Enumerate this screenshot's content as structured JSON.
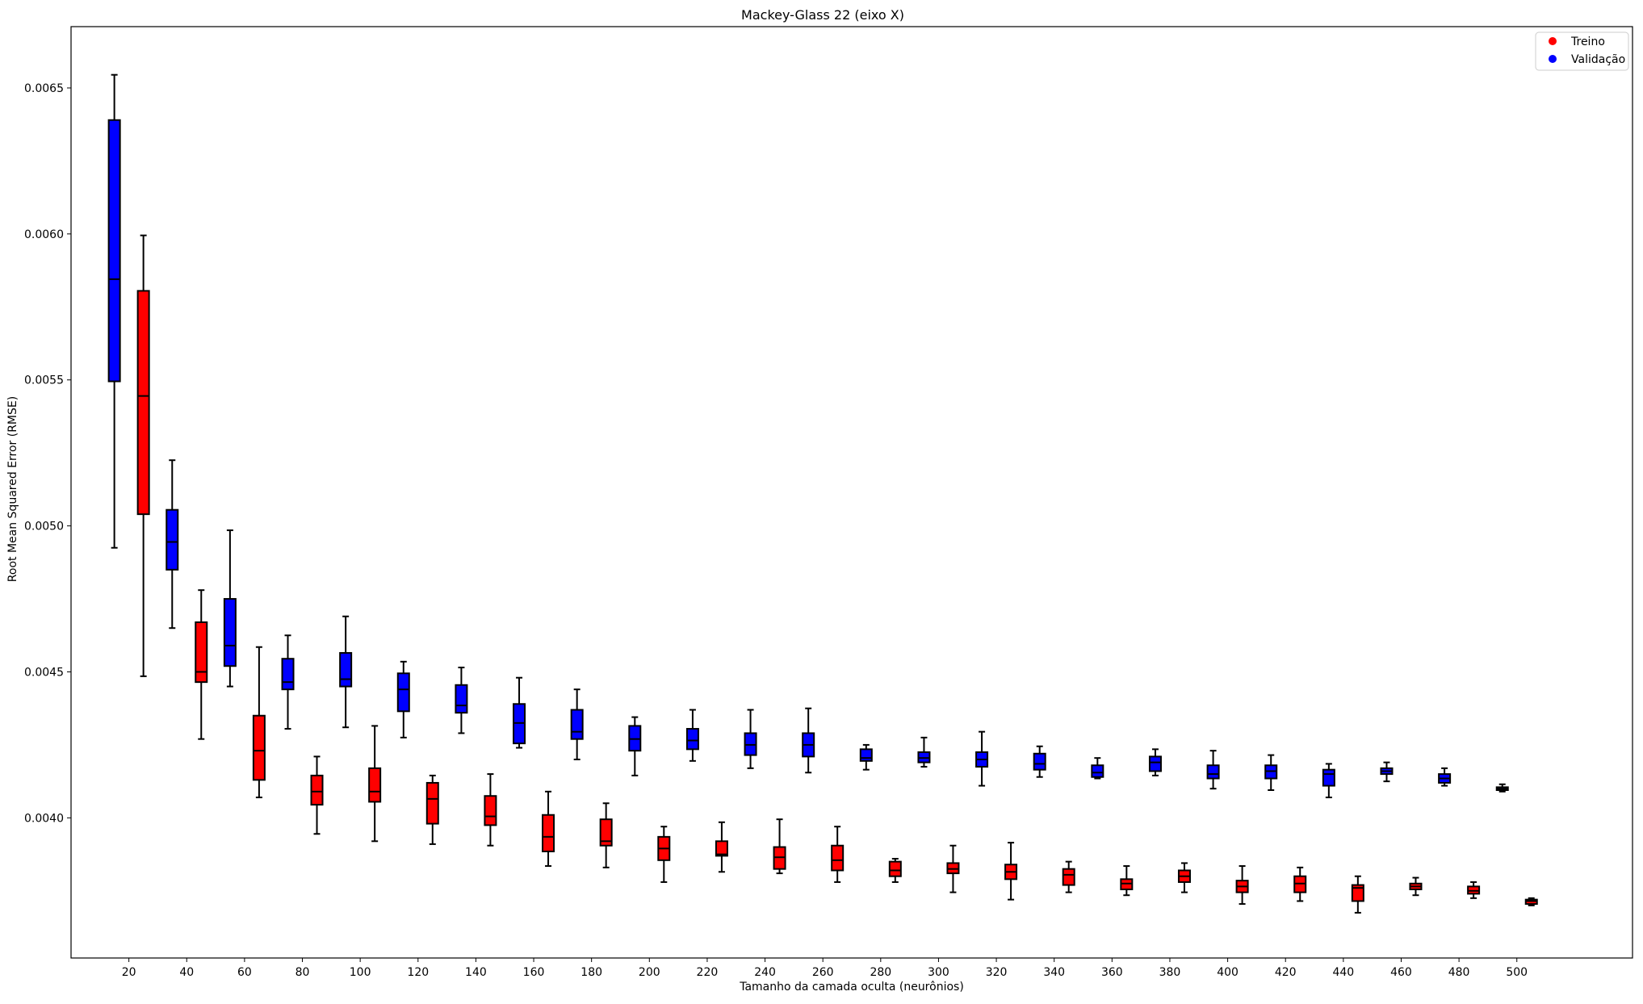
{
  "chart_data": {
    "type": "boxplot",
    "title": "Mackey-Glass 22 (eixo X)",
    "xlabel": "Tamanho da camada oculta (neurônios)",
    "ylabel": "Root Mean Squared Error (RMSE)",
    "categories": [
      20,
      40,
      60,
      80,
      100,
      120,
      140,
      160,
      180,
      200,
      220,
      240,
      260,
      280,
      300,
      320,
      340,
      360,
      380,
      400,
      420,
      440,
      460,
      480,
      500
    ],
    "xlim": [
      0,
      540
    ],
    "ylim": [
      0.00352,
      0.00671
    ],
    "yticks": [
      "0.0040",
      "0.0045",
      "0.0050",
      "0.0055",
      "0.0060",
      "0.0065"
    ],
    "legend": {
      "position": "top-right"
    },
    "series": [
      {
        "name": "Treino",
        "color": "#ff0000",
        "boxes": [
          {
            "whislo": 0.004485,
            "q1": 0.00504,
            "med": 0.005445,
            "q3": 0.005805,
            "whishi": 0.005995
          },
          {
            "whislo": 0.00427,
            "q1": 0.004465,
            "med": 0.0045,
            "q3": 0.00467,
            "whishi": 0.00478
          },
          {
            "whislo": 0.00407,
            "q1": 0.00413,
            "med": 0.00423,
            "q3": 0.00435,
            "whishi": 0.004585
          },
          {
            "whislo": 0.003945,
            "q1": 0.004045,
            "med": 0.00409,
            "q3": 0.004145,
            "whishi": 0.00421
          },
          {
            "whislo": 0.00392,
            "q1": 0.004055,
            "med": 0.00409,
            "q3": 0.00417,
            "whishi": 0.004315
          },
          {
            "whislo": 0.00391,
            "q1": 0.00398,
            "med": 0.004065,
            "q3": 0.00412,
            "whishi": 0.004145
          },
          {
            "whislo": 0.003905,
            "q1": 0.003975,
            "med": 0.004005,
            "q3": 0.004075,
            "whishi": 0.00415
          },
          {
            "whislo": 0.003835,
            "q1": 0.003885,
            "med": 0.003935,
            "q3": 0.00401,
            "whishi": 0.00409
          },
          {
            "whislo": 0.00383,
            "q1": 0.003905,
            "med": 0.00392,
            "q3": 0.003995,
            "whishi": 0.00405
          },
          {
            "whislo": 0.00378,
            "q1": 0.003855,
            "med": 0.003895,
            "q3": 0.003935,
            "whishi": 0.00397
          },
          {
            "whislo": 0.003815,
            "q1": 0.00387,
            "med": 0.003875,
            "q3": 0.00392,
            "whishi": 0.003985
          },
          {
            "whislo": 0.00381,
            "q1": 0.003825,
            "med": 0.003865,
            "q3": 0.0039,
            "whishi": 0.003995
          },
          {
            "whislo": 0.00378,
            "q1": 0.00382,
            "med": 0.003855,
            "q3": 0.003905,
            "whishi": 0.00397
          },
          {
            "whislo": 0.00378,
            "q1": 0.0038,
            "med": 0.00382,
            "q3": 0.00385,
            "whishi": 0.00386
          },
          {
            "whislo": 0.003745,
            "q1": 0.00381,
            "med": 0.003825,
            "q3": 0.003845,
            "whishi": 0.003905
          },
          {
            "whislo": 0.00372,
            "q1": 0.00379,
            "med": 0.003815,
            "q3": 0.00384,
            "whishi": 0.003915
          },
          {
            "whislo": 0.003745,
            "q1": 0.00377,
            "med": 0.003805,
            "q3": 0.003825,
            "whishi": 0.00385
          },
          {
            "whislo": 0.003735,
            "q1": 0.003755,
            "med": 0.003775,
            "q3": 0.00379,
            "whishi": 0.003835
          },
          {
            "whislo": 0.003745,
            "q1": 0.00378,
            "med": 0.0038,
            "q3": 0.00382,
            "whishi": 0.003845
          },
          {
            "whislo": 0.003705,
            "q1": 0.003745,
            "med": 0.003765,
            "q3": 0.003785,
            "whishi": 0.003835
          },
          {
            "whislo": 0.003715,
            "q1": 0.003745,
            "med": 0.003775,
            "q3": 0.0038,
            "whishi": 0.00383
          },
          {
            "whislo": 0.003675,
            "q1": 0.003715,
            "med": 0.00376,
            "q3": 0.00377,
            "whishi": 0.0038
          },
          {
            "whislo": 0.003735,
            "q1": 0.003755,
            "med": 0.003765,
            "q3": 0.003775,
            "whishi": 0.003795
          },
          {
            "whislo": 0.003725,
            "q1": 0.00374,
            "med": 0.00375,
            "q3": 0.003765,
            "whishi": 0.00378
          },
          {
            "whislo": 0.0037,
            "q1": 0.003705,
            "med": 0.003715,
            "q3": 0.00372,
            "whishi": 0.003725
          }
        ]
      },
      {
        "name": "Validação",
        "color": "#0000ff",
        "boxes": [
          {
            "whislo": 0.004925,
            "q1": 0.005495,
            "med": 0.005845,
            "q3": 0.00639,
            "whishi": 0.006545
          },
          {
            "whislo": 0.00465,
            "q1": 0.00485,
            "med": 0.004945,
            "q3": 0.005055,
            "whishi": 0.005225
          },
          {
            "whislo": 0.00445,
            "q1": 0.00452,
            "med": 0.00459,
            "q3": 0.00475,
            "whishi": 0.004985
          },
          {
            "whislo": 0.004305,
            "q1": 0.00444,
            "med": 0.004465,
            "q3": 0.004545,
            "whishi": 0.004625
          },
          {
            "whislo": 0.00431,
            "q1": 0.00445,
            "med": 0.004475,
            "q3": 0.004565,
            "whishi": 0.00469
          },
          {
            "whislo": 0.004275,
            "q1": 0.004365,
            "med": 0.00444,
            "q3": 0.004495,
            "whishi": 0.004535
          },
          {
            "whislo": 0.00429,
            "q1": 0.00436,
            "med": 0.004385,
            "q3": 0.004455,
            "whishi": 0.004515
          },
          {
            "whislo": 0.00424,
            "q1": 0.004255,
            "med": 0.004325,
            "q3": 0.00439,
            "whishi": 0.00448
          },
          {
            "whislo": 0.0042,
            "q1": 0.00427,
            "med": 0.004295,
            "q3": 0.00437,
            "whishi": 0.00444
          },
          {
            "whislo": 0.004145,
            "q1": 0.00423,
            "med": 0.00427,
            "q3": 0.004315,
            "whishi": 0.004345
          },
          {
            "whislo": 0.004195,
            "q1": 0.004235,
            "med": 0.004265,
            "q3": 0.004305,
            "whishi": 0.00437
          },
          {
            "whislo": 0.00417,
            "q1": 0.004215,
            "med": 0.00425,
            "q3": 0.00429,
            "whishi": 0.00437
          },
          {
            "whislo": 0.004155,
            "q1": 0.00421,
            "med": 0.00425,
            "q3": 0.00429,
            "whishi": 0.004375
          },
          {
            "whislo": 0.004165,
            "q1": 0.004195,
            "med": 0.004205,
            "q3": 0.004235,
            "whishi": 0.00425
          },
          {
            "whislo": 0.004175,
            "q1": 0.00419,
            "med": 0.004205,
            "q3": 0.004225,
            "whishi": 0.004275
          },
          {
            "whislo": 0.00411,
            "q1": 0.004175,
            "med": 0.0042,
            "q3": 0.004225,
            "whishi": 0.004295
          },
          {
            "whislo": 0.00414,
            "q1": 0.004165,
            "med": 0.004185,
            "q3": 0.00422,
            "whishi": 0.004245
          },
          {
            "whislo": 0.004135,
            "q1": 0.00414,
            "med": 0.004155,
            "q3": 0.00418,
            "whishi": 0.004205
          },
          {
            "whislo": 0.004145,
            "q1": 0.00416,
            "med": 0.00419,
            "q3": 0.00421,
            "whishi": 0.004235
          },
          {
            "whislo": 0.0041,
            "q1": 0.004135,
            "med": 0.00415,
            "q3": 0.00418,
            "whishi": 0.00423
          },
          {
            "whislo": 0.004095,
            "q1": 0.004135,
            "med": 0.00416,
            "q3": 0.00418,
            "whishi": 0.004215
          },
          {
            "whislo": 0.00407,
            "q1": 0.00411,
            "med": 0.00415,
            "q3": 0.004165,
            "whishi": 0.004185
          },
          {
            "whislo": 0.004125,
            "q1": 0.00415,
            "med": 0.00416,
            "q3": 0.00417,
            "whishi": 0.00419
          },
          {
            "whislo": 0.00411,
            "q1": 0.00412,
            "med": 0.004135,
            "q3": 0.00415,
            "whishi": 0.00417
          },
          {
            "whislo": 0.00409,
            "q1": 0.004095,
            "med": 0.0041,
            "q3": 0.004105,
            "whishi": 0.004115
          }
        ]
      }
    ]
  }
}
